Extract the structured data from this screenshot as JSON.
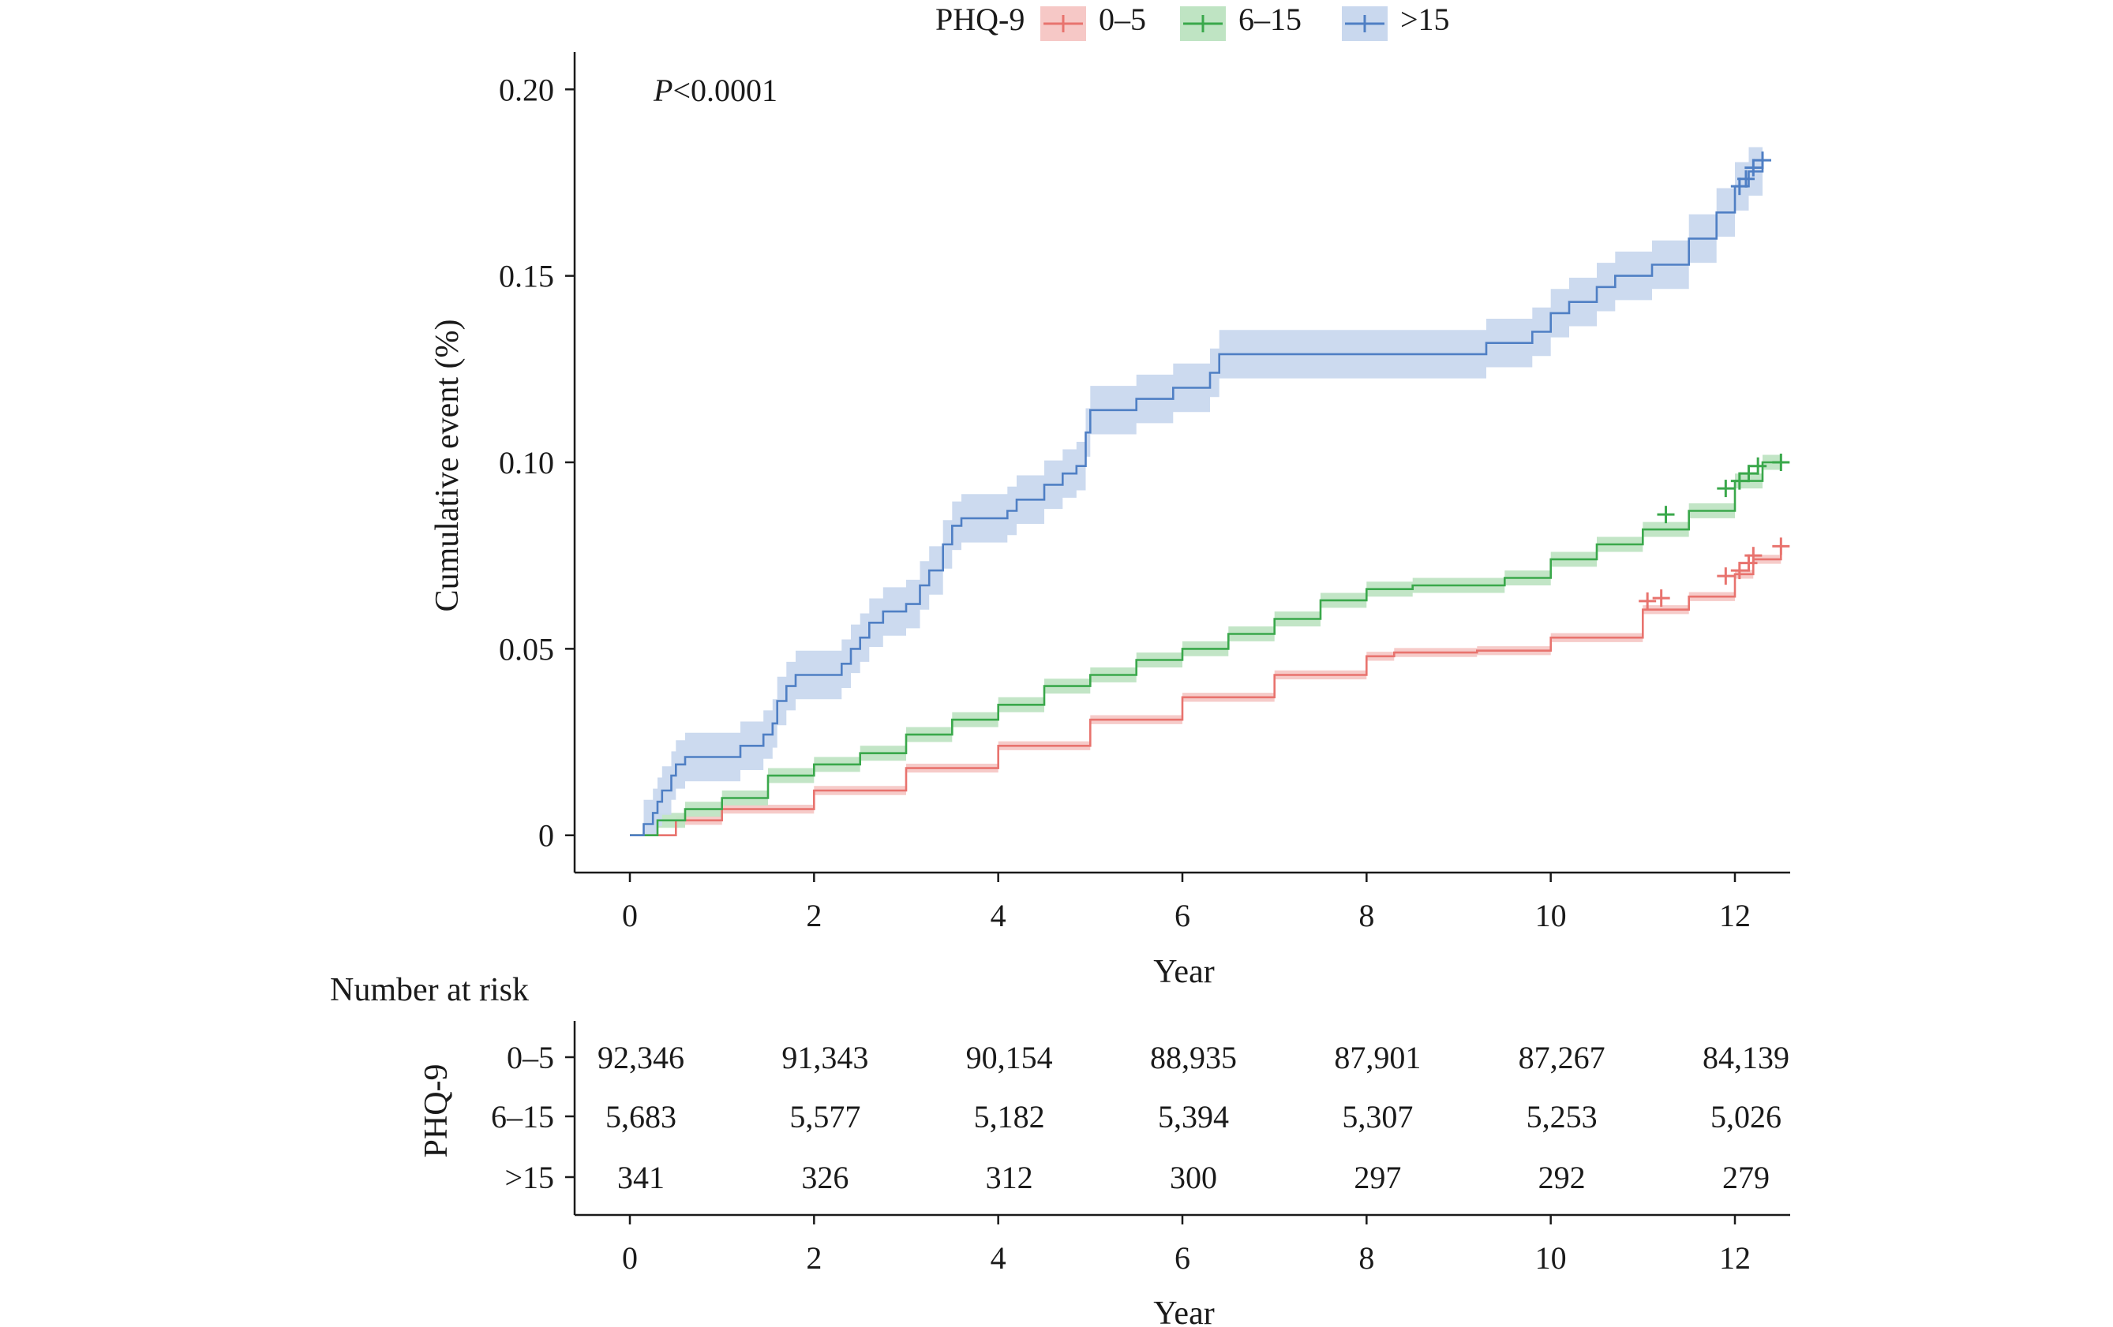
{
  "colors": {
    "g1": "#e8736e",
    "g2": "#3aa84b",
    "g3": "#4f7fc4",
    "g1_band": "#f6c8c6",
    "g2_band": "#bfe4c3",
    "g3_band": "#c9d8ee"
  },
  "legend": {
    "title": "PHQ-9",
    "items": [
      "0–5",
      "6–15",
      ">15"
    ]
  },
  "chart_data": {
    "type": "line",
    "subtype": "kaplan-meier cumulative event",
    "annotation": {
      "italic": "P",
      "rest": "<0.0001"
    },
    "xlabel": "Year",
    "ylabel": "Cumulative event (%)",
    "xlim": [
      -0.6,
      12.6
    ],
    "ylim": [
      -0.01,
      0.21
    ],
    "xticks": [
      0,
      2,
      4,
      6,
      8,
      10,
      12
    ],
    "xtick_labels": [
      "0",
      "2",
      "4",
      "6",
      "8",
      "10",
      "12"
    ],
    "yticks": [
      0,
      0.05,
      0.1,
      0.15,
      0.2
    ],
    "ytick_labels": [
      "0",
      "0.05",
      "0.10",
      "0.15",
      "0.20"
    ],
    "grid": false,
    "legend_position": "top-center",
    "series": [
      {
        "name": "0–5",
        "color_key": "g1",
        "band_key": "g1_band",
        "band": 0.0012,
        "points": [
          [
            0,
            0
          ],
          [
            0.5,
            0.004
          ],
          [
            1,
            0.007
          ],
          [
            2,
            0.012
          ],
          [
            3,
            0.018
          ],
          [
            4,
            0.024
          ],
          [
            5,
            0.031
          ],
          [
            6,
            0.037
          ],
          [
            7,
            0.043
          ],
          [
            8,
            0.048
          ],
          [
            8.3,
            0.049
          ],
          [
            9.2,
            0.0495
          ],
          [
            10,
            0.053
          ],
          [
            11,
            0.0605
          ],
          [
            11.5,
            0.064
          ],
          [
            12,
            0.07
          ],
          [
            12.2,
            0.074
          ],
          [
            12.5,
            0.0775
          ]
        ],
        "censors": [
          [
            11.05,
            0.0628
          ],
          [
            11.2,
            0.0636
          ],
          [
            11.9,
            0.0695
          ],
          [
            12.05,
            0.071
          ],
          [
            12.15,
            0.073
          ],
          [
            12.2,
            0.075
          ],
          [
            12.5,
            0.0775
          ]
        ]
      },
      {
        "name": "6–15",
        "color_key": "g2",
        "band_key": "g2_band",
        "band": 0.002,
        "points": [
          [
            0,
            0
          ],
          [
            0.3,
            0.004
          ],
          [
            0.6,
            0.007
          ],
          [
            1,
            0.01
          ],
          [
            1.5,
            0.016
          ],
          [
            2,
            0.019
          ],
          [
            2.5,
            0.022
          ],
          [
            3,
            0.027
          ],
          [
            3.5,
            0.031
          ],
          [
            4,
            0.035
          ],
          [
            4.5,
            0.04
          ],
          [
            5,
            0.043
          ],
          [
            5.5,
            0.047
          ],
          [
            6,
            0.05
          ],
          [
            6.5,
            0.054
          ],
          [
            7,
            0.058
          ],
          [
            7.5,
            0.063
          ],
          [
            8,
            0.066
          ],
          [
            8.5,
            0.067
          ],
          [
            9,
            0.067
          ],
          [
            9.5,
            0.069
          ],
          [
            10,
            0.074
          ],
          [
            10.5,
            0.078
          ],
          [
            11,
            0.082
          ],
          [
            11.5,
            0.087
          ],
          [
            12,
            0.095
          ],
          [
            12.3,
            0.1
          ],
          [
            12.5,
            0.1
          ]
        ],
        "censors": [
          [
            11.25,
            0.086
          ],
          [
            11.9,
            0.093
          ],
          [
            12.05,
            0.095
          ],
          [
            12.15,
            0.097
          ],
          [
            12.25,
            0.099
          ],
          [
            12.5,
            0.1
          ]
        ]
      },
      {
        "name": ">15",
        "color_key": "g3",
        "band_key": "g3_band",
        "band": 0.0065,
        "points": [
          [
            0,
            0
          ],
          [
            0.15,
            0.003
          ],
          [
            0.25,
            0.006
          ],
          [
            0.3,
            0.009
          ],
          [
            0.35,
            0.012
          ],
          [
            0.45,
            0.016
          ],
          [
            0.5,
            0.019
          ],
          [
            0.6,
            0.021
          ],
          [
            1.0,
            0.021
          ],
          [
            1.2,
            0.024
          ],
          [
            1.45,
            0.027
          ],
          [
            1.55,
            0.03
          ],
          [
            1.6,
            0.036
          ],
          [
            1.7,
            0.04
          ],
          [
            1.8,
            0.043
          ],
          [
            2.3,
            0.046
          ],
          [
            2.4,
            0.05
          ],
          [
            2.5,
            0.053
          ],
          [
            2.6,
            0.057
          ],
          [
            2.75,
            0.06
          ],
          [
            3.0,
            0.062
          ],
          [
            3.15,
            0.067
          ],
          [
            3.25,
            0.071
          ],
          [
            3.4,
            0.078
          ],
          [
            3.5,
            0.083
          ],
          [
            3.6,
            0.085
          ],
          [
            4.1,
            0.087
          ],
          [
            4.2,
            0.09
          ],
          [
            4.5,
            0.094
          ],
          [
            4.7,
            0.097
          ],
          [
            4.85,
            0.099
          ],
          [
            4.95,
            0.108
          ],
          [
            5.0,
            0.114
          ],
          [
            5.5,
            0.117
          ],
          [
            5.8,
            0.117
          ],
          [
            5.9,
            0.12
          ],
          [
            6.3,
            0.124
          ],
          [
            6.4,
            0.129
          ],
          [
            9.0,
            0.129
          ],
          [
            9.3,
            0.132
          ],
          [
            9.8,
            0.135
          ],
          [
            10.0,
            0.14
          ],
          [
            10.2,
            0.143
          ],
          [
            10.5,
            0.147
          ],
          [
            10.7,
            0.15
          ],
          [
            11.1,
            0.153
          ],
          [
            11.5,
            0.16
          ],
          [
            11.8,
            0.167
          ],
          [
            12.0,
            0.174
          ],
          [
            12.15,
            0.178
          ],
          [
            12.3,
            0.181
          ]
        ],
        "censors": [
          [
            12.05,
            0.174
          ],
          [
            12.12,
            0.176
          ],
          [
            12.2,
            0.179
          ],
          [
            12.3,
            0.181
          ]
        ]
      }
    ]
  },
  "risk_table": {
    "heading": "Number at risk",
    "strata_title": "PHQ-9",
    "xlabel": "Year",
    "xticks": [
      "0",
      "2",
      "4",
      "6",
      "8",
      "10",
      "12"
    ],
    "rows": [
      {
        "label": "0–5",
        "values": [
          "92,346",
          "91,343",
          "90,154",
          "88,935",
          "87,901",
          "87,267",
          "84,139"
        ]
      },
      {
        "label": "6–15",
        "values": [
          "5,683",
          "5,577",
          "5,182",
          "5,394",
          "5,307",
          "5,253",
          "5,026"
        ]
      },
      {
        "label": ">15",
        "values": [
          "341",
          "326",
          "312",
          "300",
          "297",
          "292",
          "279"
        ]
      }
    ]
  }
}
